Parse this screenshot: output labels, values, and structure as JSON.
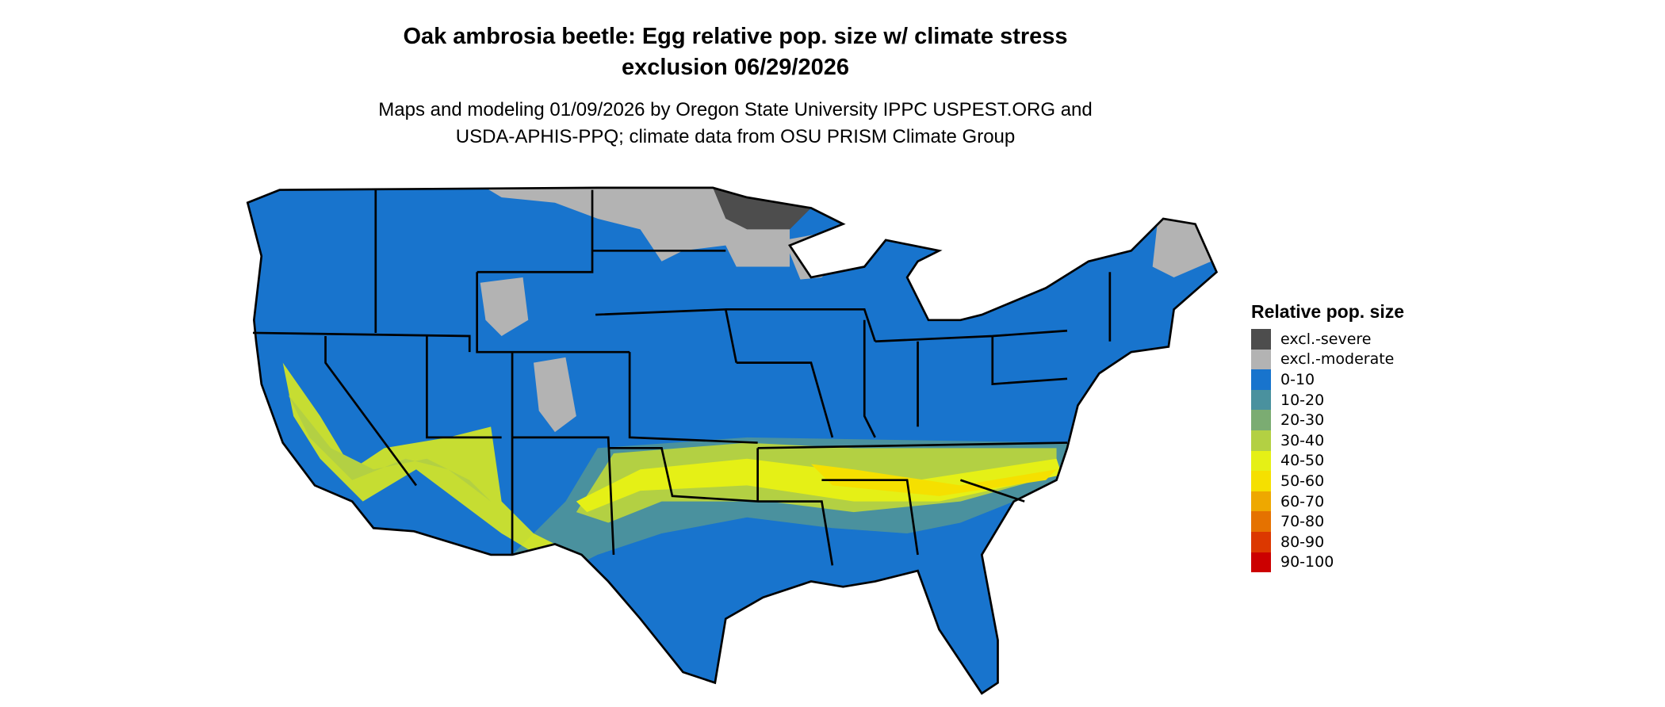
{
  "title": {
    "line1": "Oak ambrosia beetle: Egg relative pop. size w/ climate stress",
    "line2": "exclusion 06/29/2026"
  },
  "subtitle": {
    "line1": "Maps and modeling 01/09/2026 by Oregon State University IPPC USPEST.ORG and",
    "line2": "USDA-APHIS-PPQ; climate data from OSU PRISM Climate Group"
  },
  "legend": {
    "title": "Relative pop. size",
    "items": [
      {
        "label": "excl.-severe",
        "color": "#4d4d4d"
      },
      {
        "label": "excl.-moderate",
        "color": "#b3b3b3"
      },
      {
        "label": "0-10",
        "color": "#1874cd"
      },
      {
        "label": "10-20",
        "color": "#4a919e"
      },
      {
        "label": "20-30",
        "color": "#7bac72"
      },
      {
        "label": "30-40",
        "color": "#b3d043"
      },
      {
        "label": "40-50",
        "color": "#e5f016"
      },
      {
        "label": "50-60",
        "color": "#f5e000"
      },
      {
        "label": "60-70",
        "color": "#eea800"
      },
      {
        "label": "70-80",
        "color": "#e57200"
      },
      {
        "label": "80-90",
        "color": "#dc3800"
      },
      {
        "label": "90-100",
        "color": "#cc0000"
      }
    ]
  }
}
